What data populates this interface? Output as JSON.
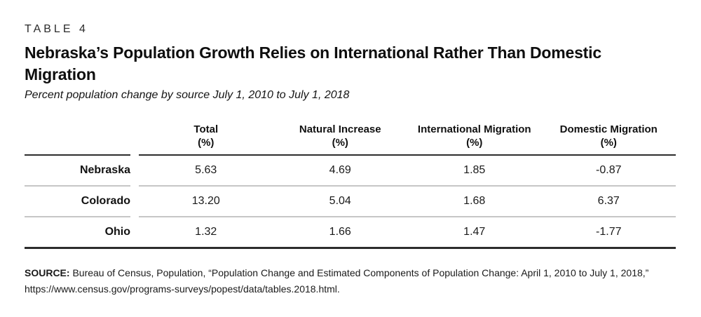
{
  "kicker": "TABLE 4",
  "title": "Nebraska’s Population Growth Relies on International Rather Than Domestic Migration",
  "subtitle": "Percent population change by source July 1, 2010 to July 1, 2018",
  "table": {
    "columns": [
      {
        "label": "Total",
        "unit": "(%)"
      },
      {
        "label": "Natural Increase",
        "unit": "(%)"
      },
      {
        "label": "International Migration",
        "unit": "(%)"
      },
      {
        "label": "Domestic Migration",
        "unit": "(%)"
      }
    ],
    "rows": [
      {
        "label": "Nebraska",
        "values": [
          "5.63",
          "4.69",
          "1.85",
          "-0.87"
        ]
      },
      {
        "label": "Colorado",
        "values": [
          "13.20",
          "5.04",
          "1.68",
          "6.37"
        ]
      },
      {
        "label": "Ohio",
        "values": [
          "1.32",
          "1.66",
          "1.47",
          "-1.77"
        ]
      }
    ]
  },
  "source": {
    "prefix": "SOURCE:",
    "line1": " Bureau of Census, Population, “Population Change and Estimated Components of Population Change: April 1, 2010 to July 1, 2018,”",
    "line2": "https://www.census.gov/programs-surveys/popest/data/tables.2018.html."
  },
  "colors": {
    "text": "#1a1a1a",
    "rule_dark": "#2d2d2d",
    "divider_gray": "#c6c6c6",
    "background": "#ffffff"
  }
}
